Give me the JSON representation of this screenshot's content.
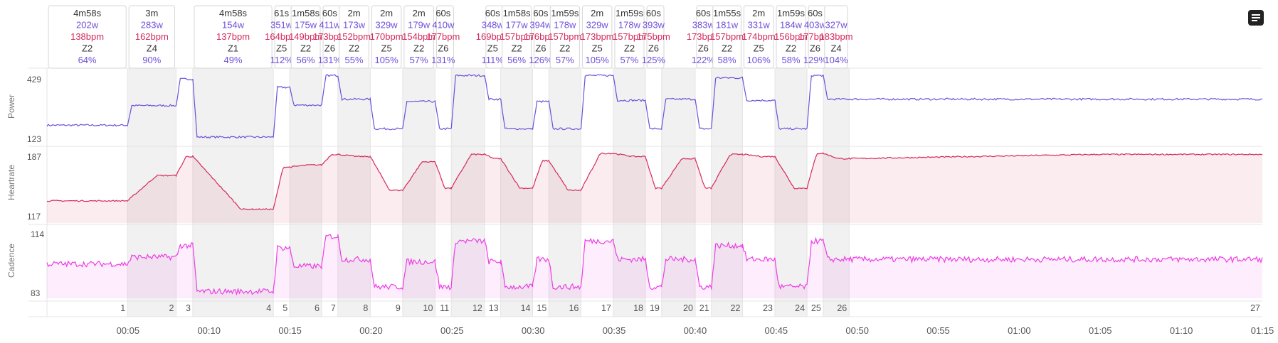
{
  "colors": {
    "power": "#6e4fd9",
    "heartrate": "#d42a5a",
    "cadence": "#ee3ce6",
    "lap_shade": "#f1f1f1",
    "grid": "#e4e4e4",
    "zone_text": "#333333"
  },
  "panels": {
    "power": {
      "label": "Power",
      "ymin_label": "123",
      "ymax_label": "429"
    },
    "heartrate": {
      "label": "Heartrate",
      "ymin_label": "117",
      "ymax_label": "187"
    },
    "cadence": {
      "label": "Cadence",
      "ymin_label": "83",
      "ymax_label": "114"
    }
  },
  "menu_icon": "notes-icon",
  "chart_data": {
    "type": "line",
    "x_unit": "elapsed time",
    "x_ticks": [
      "00:05",
      "00:10",
      "00:15",
      "00:20",
      "00:25",
      "00:30",
      "00:35",
      "00:40",
      "00:45",
      "00:50",
      "00:55",
      "01:00",
      "01:05",
      "01:10",
      "01:15"
    ],
    "xlim": [
      0,
      75
    ],
    "series": [
      {
        "name": "Power",
        "ylim": [
          123,
          429
        ]
      },
      {
        "name": "Heartrate",
        "ylim": [
          117,
          187
        ]
      },
      {
        "name": "Cadence",
        "ylim": [
          83,
          114
        ]
      }
    ],
    "laps": [
      {
        "n": "1",
        "start": 0.0,
        "end": 4.97,
        "dur": "4m58s",
        "power": "202w",
        "hr": "138bpm",
        "zone": "Z2",
        "pct": "64%",
        "p": 200,
        "h": 138,
        "c": 98
      },
      {
        "n": "2",
        "start": 4.97,
        "end": 7.97,
        "dur": "3m",
        "power": "283w",
        "hr": "162bpm",
        "zone": "Z4",
        "pct": "90%",
        "p": 283,
        "h": 162,
        "c": 101
      },
      {
        "n": "3",
        "start": 7.97,
        "end": 9.0,
        "dur": "",
        "power": "",
        "hr": "",
        "zone": "",
        "pct": "",
        "p": 395,
        "h": 180,
        "c": 106
      },
      {
        "n": "4",
        "start": 9.0,
        "end": 13.97,
        "dur": "4m58s",
        "power": "154w",
        "hr": "137bpm",
        "zone": "Z1",
        "pct": "49%",
        "p": 150,
        "h": 130,
        "c": 86
      },
      {
        "n": "5",
        "start": 13.97,
        "end": 14.98,
        "dur": "61s",
        "power": "351w",
        "hr": "164bpm",
        "zone": "Z5",
        "pct": "112%",
        "p": 360,
        "h": 170,
        "c": 105
      },
      {
        "n": "6",
        "start": 14.98,
        "end": 16.95,
        "dur": "1m58s",
        "power": "175w",
        "hr": "149bpm",
        "zone": "Z2",
        "pct": "56%",
        "p": 285,
        "h": 172,
        "c": 97
      },
      {
        "n": "7",
        "start": 16.95,
        "end": 17.95,
        "dur": "60s",
        "power": "411w",
        "hr": "173bpm",
        "zone": "Z6",
        "pct": "131%",
        "p": 410,
        "h": 182,
        "c": 110
      },
      {
        "n": "8",
        "start": 17.95,
        "end": 19.95,
        "dur": "2m",
        "power": "173w",
        "hr": "152bpm",
        "zone": "Z2",
        "pct": "55%",
        "p": 310,
        "h": 180,
        "c": 100
      },
      {
        "n": "9",
        "start": 19.95,
        "end": 21.95,
        "dur": "2m",
        "power": "329w",
        "hr": "170bpm",
        "zone": "Z5",
        "pct": "105%",
        "p": 185,
        "h": 148,
        "c": 88
      },
      {
        "n": "10",
        "start": 21.95,
        "end": 23.95,
        "dur": "2m",
        "power": "179w",
        "hr": "154bpm",
        "zone": "Z2",
        "pct": "57%",
        "p": 300,
        "h": 175,
        "c": 99
      },
      {
        "n": "11",
        "start": 23.95,
        "end": 24.95,
        "dur": "60s",
        "power": "410w",
        "hr": "177bpm",
        "zone": "Z6",
        "pct": "131%",
        "p": 185,
        "h": 150,
        "c": 88
      },
      {
        "n": "12",
        "start": 24.95,
        "end": 27.0,
        "dur": "",
        "power": "",
        "hr": "",
        "zone": "",
        "pct": "",
        "p": 410,
        "h": 182,
        "c": 108
      },
      {
        "n": "13",
        "start": 27.0,
        "end": 28.0,
        "dur": "60s",
        "power": "348w",
        "hr": "169bpm",
        "zone": "Z5",
        "pct": "111%",
        "p": 310,
        "h": 178,
        "c": 99
      },
      {
        "n": "14",
        "start": 28.0,
        "end": 29.97,
        "dur": "1m58s",
        "power": "177w",
        "hr": "157bpm",
        "zone": "Z2",
        "pct": "56%",
        "p": 185,
        "h": 150,
        "c": 88
      },
      {
        "n": "15",
        "start": 29.97,
        "end": 30.97,
        "dur": "60s",
        "power": "394w",
        "hr": "176bpm",
        "zone": "Z6",
        "pct": "126%",
        "p": 300,
        "h": 176,
        "c": 100
      },
      {
        "n": "16",
        "start": 30.97,
        "end": 32.95,
        "dur": "1m59s",
        "power": "178w",
        "hr": "157bpm",
        "zone": "Z2",
        "pct": "57%",
        "p": 185,
        "h": 148,
        "c": 88
      },
      {
        "n": "17",
        "start": 32.95,
        "end": 34.95,
        "dur": "2m",
        "power": "329w",
        "hr": "173bpm",
        "zone": "Z5",
        "pct": "105%",
        "p": 410,
        "h": 183,
        "c": 108
      },
      {
        "n": "18",
        "start": 34.95,
        "end": 36.93,
        "dur": "1m59s",
        "power": "178w",
        "hr": "157bpm",
        "zone": "Z2",
        "pct": "57%",
        "p": 305,
        "h": 180,
        "c": 100
      },
      {
        "n": "19",
        "start": 36.93,
        "end": 37.93,
        "dur": "60s",
        "power": "393w",
        "hr": "175bpm",
        "zone": "Z6",
        "pct": "125%",
        "p": 185,
        "h": 150,
        "c": 88
      },
      {
        "n": "20",
        "start": 37.93,
        "end": 40.0,
        "dur": "",
        "power": "",
        "hr": "",
        "zone": "",
        "pct": "",
        "p": 310,
        "h": 178,
        "c": 100
      },
      {
        "n": "21",
        "start": 40.0,
        "end": 41.0,
        "dur": "60s",
        "power": "383w",
        "hr": "173bpm",
        "zone": "Z6",
        "pct": "122%",
        "p": 185,
        "h": 150,
        "c": 88
      },
      {
        "n": "22",
        "start": 41.0,
        "end": 42.92,
        "dur": "1m55s",
        "power": "181w",
        "hr": "157bpm",
        "zone": "Z2",
        "pct": "58%",
        "p": 400,
        "h": 182,
        "c": 106
      },
      {
        "n": "23",
        "start": 42.92,
        "end": 44.92,
        "dur": "2m",
        "power": "331w",
        "hr": "174bpm",
        "zone": "Z5",
        "pct": "106%",
        "p": 305,
        "h": 180,
        "c": 100
      },
      {
        "n": "24",
        "start": 44.92,
        "end": 46.9,
        "dur": "1m59s",
        "power": "184w",
        "hr": "156bpm",
        "zone": "Z2",
        "pct": "58%",
        "p": 185,
        "h": 150,
        "c": 88
      },
      {
        "n": "25",
        "start": 46.9,
        "end": 47.9,
        "dur": "60s",
        "power": "403w",
        "hr": "177bpm",
        "zone": "Z6",
        "pct": "129%",
        "p": 410,
        "h": 183,
        "c": 108
      },
      {
        "n": "26",
        "start": 47.9,
        "end": 49.5,
        "dur": "",
        "power": "327w",
        "hr": "183bpm",
        "zone": "Z4",
        "pct": "104%",
        "p": 310,
        "h": 178,
        "c": 100
      },
      {
        "n": "27",
        "start": 49.5,
        "end": 75.0,
        "dur": "",
        "power": "",
        "hr": "",
        "zone": "",
        "pct": "",
        "p": 310,
        "h": 182,
        "c": 100
      }
    ]
  }
}
